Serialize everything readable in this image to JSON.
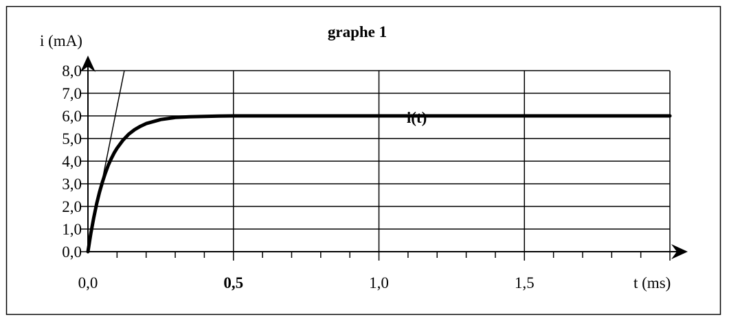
{
  "chart_data": {
    "type": "line",
    "title": "graphe 1",
    "ylabel": "i (mA)",
    "xlabel": "t (ms)",
    "xlim": [
      0,
      2.0
    ],
    "ylim": [
      0,
      8
    ],
    "x_tick_labels": [
      {
        "value": 0.0,
        "text": "0,0",
        "bold": false
      },
      {
        "value": 0.5,
        "text": "0,5",
        "bold": true
      },
      {
        "value": 1.0,
        "text": "1,0",
        "bold": false
      },
      {
        "value": 1.5,
        "text": "1,5",
        "bold": false
      }
    ],
    "y_tick_labels": [
      {
        "value": 0,
        "text": "0,0"
      },
      {
        "value": 1,
        "text": "1,0"
      },
      {
        "value": 2,
        "text": "2,0"
      },
      {
        "value": 3,
        "text": "3,0"
      },
      {
        "value": 4,
        "text": "4,0"
      },
      {
        "value": 5,
        "text": "5,0"
      },
      {
        "value": 6,
        "text": "6,0"
      },
      {
        "value": 7,
        "text": "7,0"
      },
      {
        "value": 8,
        "text": "8,0"
      }
    ],
    "x_minor_step": 0.1,
    "major_gridlines_x": [
      0.5,
      1.0,
      1.5,
      2.0
    ],
    "grid": true,
    "series": [
      {
        "name": "i(t)",
        "x": [
          0,
          0.01,
          0.02,
          0.03,
          0.04,
          0.05,
          0.06,
          0.07,
          0.08,
          0.09,
          0.1,
          0.12,
          0.14,
          0.16,
          0.18,
          0.2,
          0.25,
          0.3,
          0.35,
          0.4,
          0.45,
          0.5,
          0.6,
          0.7,
          0.8,
          1.0,
          1.2,
          1.4,
          1.6,
          1.8,
          2.0
        ],
        "y": [
          0,
          0.81,
          1.51,
          2.12,
          2.64,
          3.09,
          3.48,
          3.82,
          4.11,
          4.36,
          4.57,
          4.92,
          5.19,
          5.39,
          5.54,
          5.66,
          5.84,
          5.93,
          5.96,
          5.98,
          5.99,
          6.0,
          6.0,
          6.0,
          6.0,
          6.0,
          6.0,
          6.0,
          6.0,
          6.0,
          6.0
        ]
      }
    ],
    "tangent_at_origin": {
      "x": [
        0,
        0.125
      ],
      "y": [
        0,
        8.0
      ]
    },
    "annotation": {
      "text": "i(t)",
      "x": 1.13,
      "y": 6.0
    }
  }
}
